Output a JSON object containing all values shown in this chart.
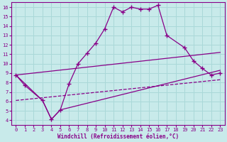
{
  "xlabel": "Windchill (Refroidissement éolien,°C)",
  "bg_color": "#c8eaea",
  "line_color": "#880088",
  "grid_color": "#aad8d8",
  "xlim": [
    -0.5,
    23.5
  ],
  "ylim": [
    3.5,
    16.5
  ],
  "xticks": [
    0,
    1,
    2,
    3,
    4,
    5,
    6,
    7,
    8,
    9,
    10,
    11,
    12,
    13,
    14,
    15,
    16,
    17,
    18,
    19,
    20,
    21,
    22,
    23
  ],
  "yticks": [
    4,
    5,
    6,
    7,
    8,
    9,
    10,
    11,
    12,
    13,
    14,
    15,
    16
  ],
  "line1_x": [
    0,
    1,
    3,
    4,
    5,
    6,
    7,
    8,
    9,
    10,
    11,
    12,
    13,
    14,
    15,
    16,
    17,
    19,
    20,
    21,
    22,
    23
  ],
  "line1_y": [
    8.8,
    7.7,
    6.1,
    4.1,
    5.1,
    7.9,
    10.0,
    11.1,
    12.2,
    13.7,
    16.0,
    15.5,
    16.0,
    15.8,
    15.8,
    16.2,
    13.0,
    11.7,
    10.3,
    9.5,
    8.8,
    9.0
  ],
  "line2_x": [
    0,
    3,
    4,
    5,
    23
  ],
  "line2_y": [
    8.8,
    6.1,
    4.1,
    5.1,
    9.3
  ],
  "line3_x": [
    0,
    23
  ],
  "line3_y": [
    6.1,
    8.3
  ],
  "line4_x": [
    0,
    23
  ],
  "line4_y": [
    8.8,
    11.2
  ]
}
